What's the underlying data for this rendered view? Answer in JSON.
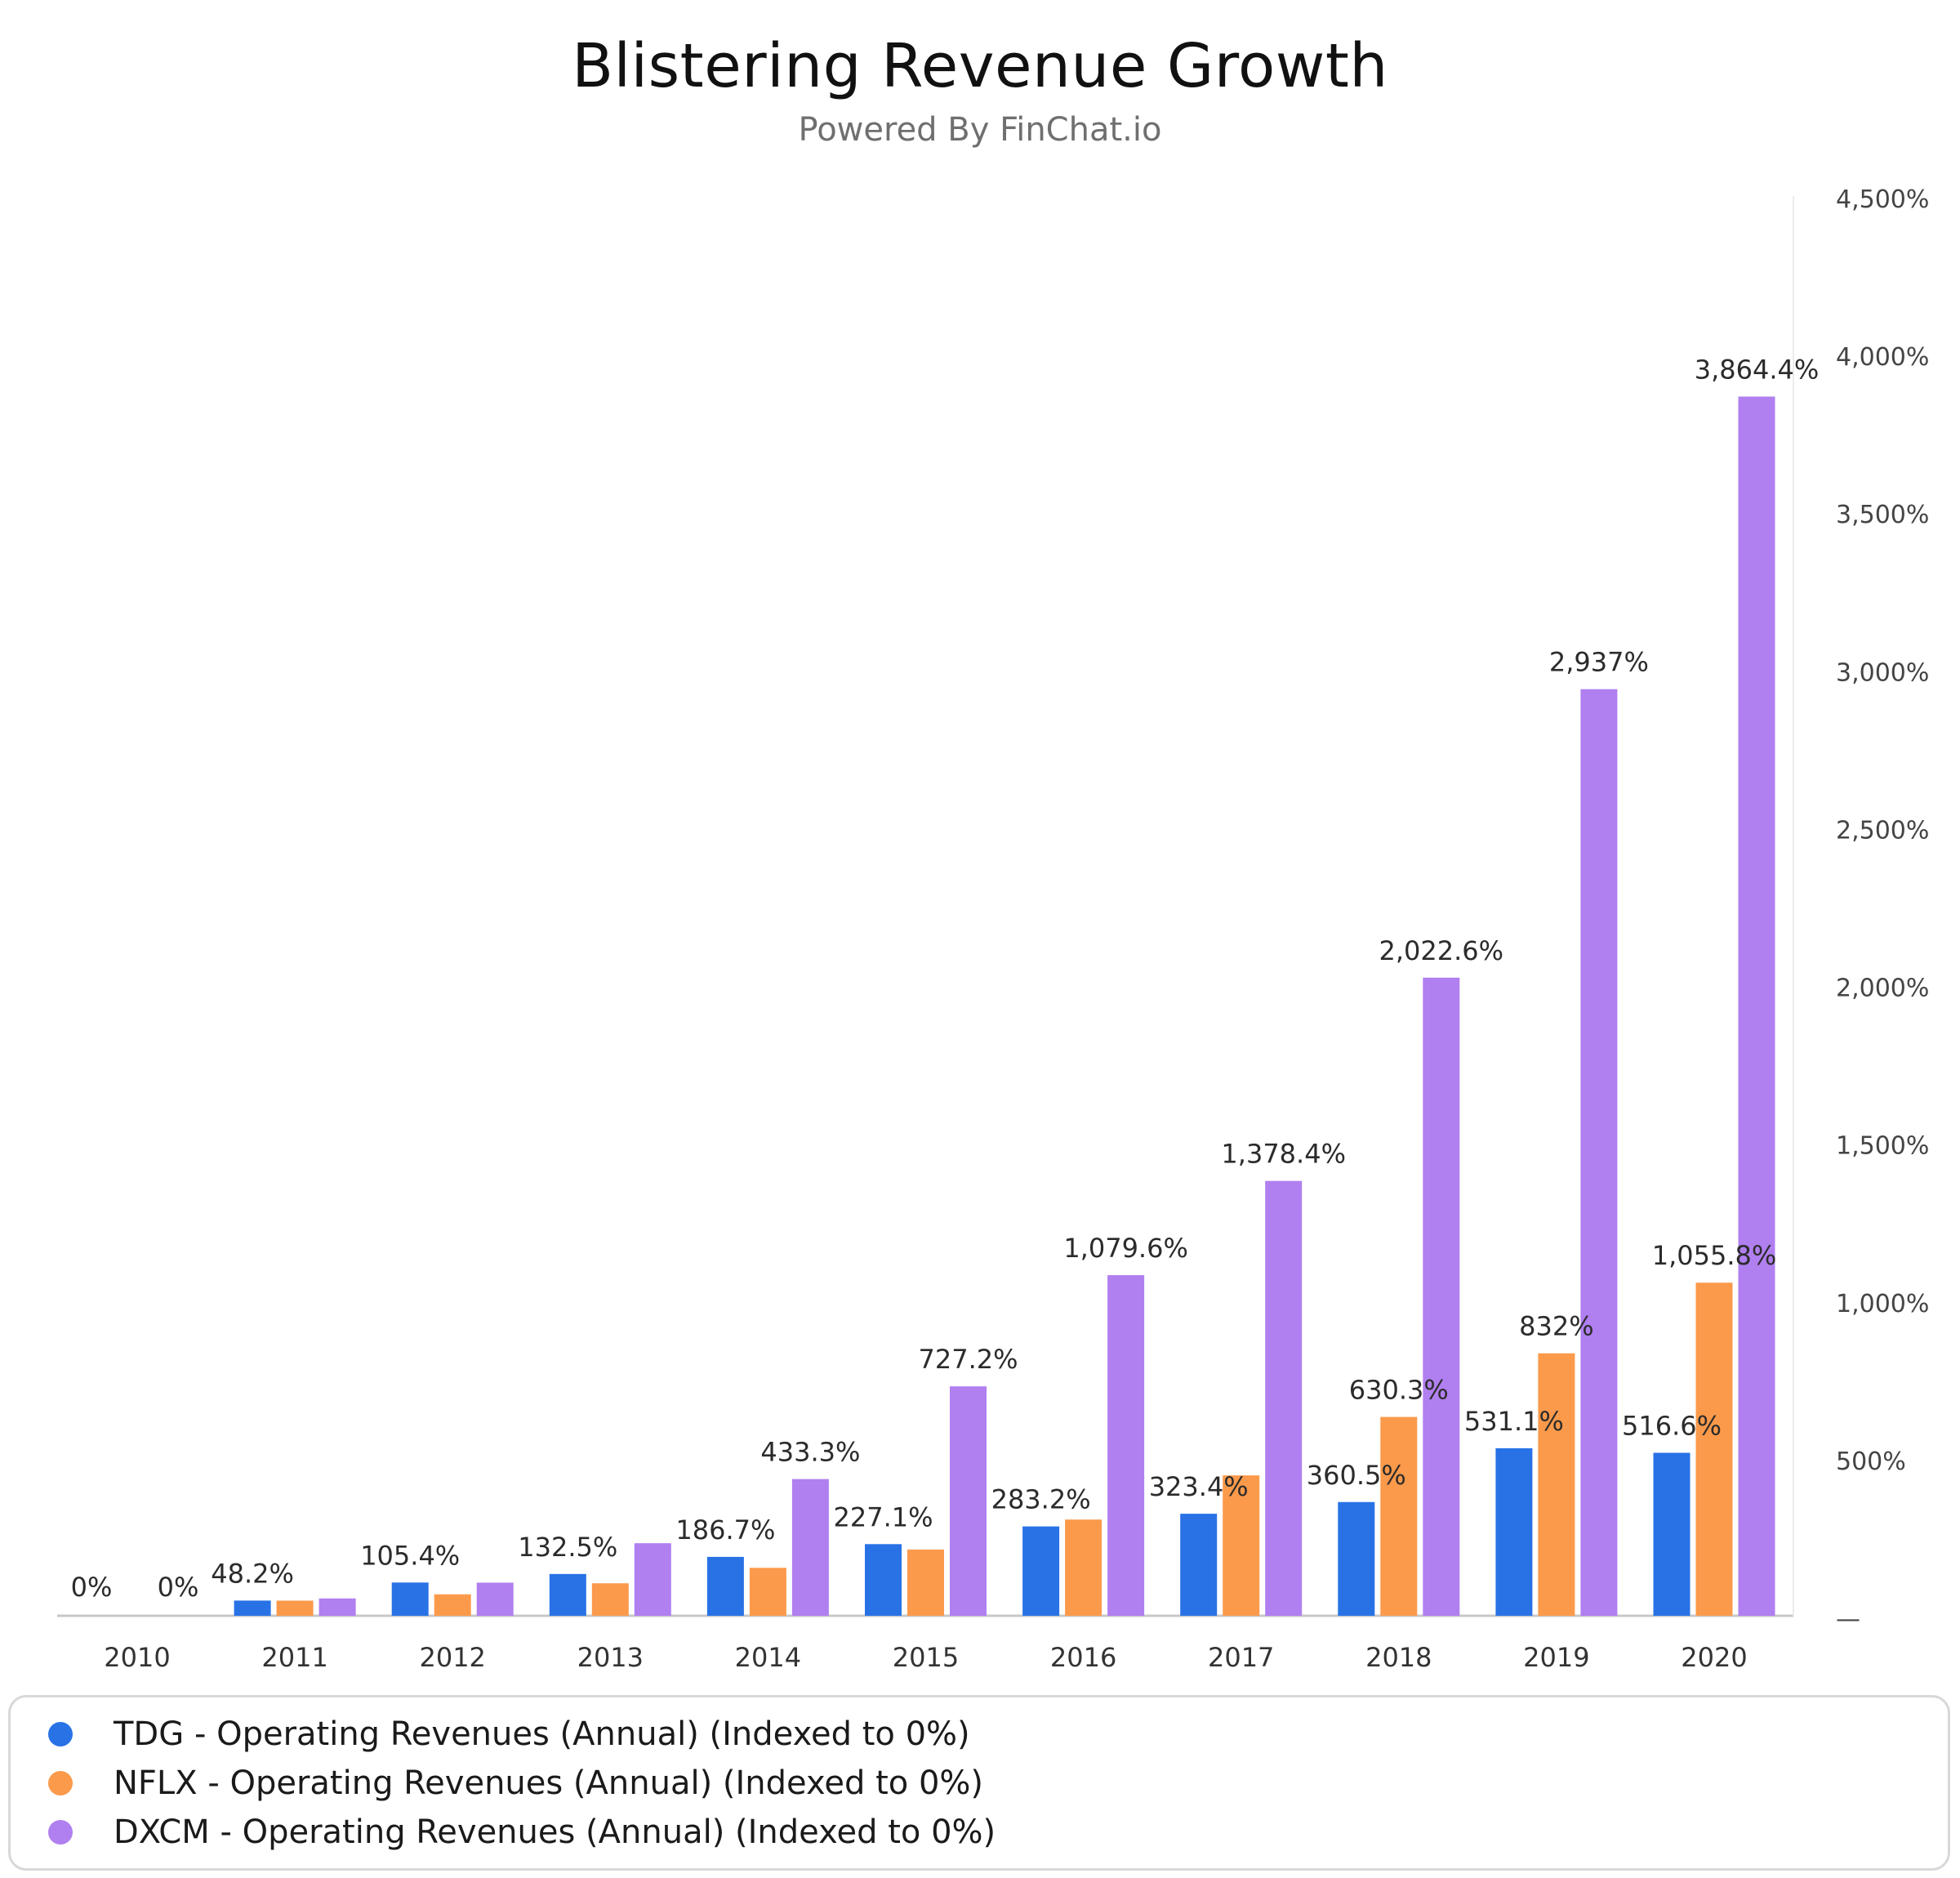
{
  "title": "Blistering Revenue Growth",
  "subtitle": "Powered By FinChat.io",
  "colors": {
    "TDG": "#2872e6",
    "NFLX": "#fb9a4b",
    "DXCM": "#b07ff0"
  },
  "chart_data": {
    "type": "bar",
    "title": "Blistering Revenue Growth",
    "subtitle": "Powered By FinChat.io",
    "categories": [
      "2010",
      "2011",
      "2012",
      "2013",
      "2014",
      "2015",
      "2016",
      "2017",
      "2018",
      "2019",
      "2020"
    ],
    "series": [
      {
        "name": "TDG - Operating Revenues (Annual) (Indexed to 0%)",
        "color": "#2872e6",
        "values": [
          0,
          48.2,
          105.4,
          132.5,
          186.7,
          227.1,
          283.2,
          323.4,
          360.5,
          531.1,
          516.6
        ]
      },
      {
        "name": "NFLX - Operating Revenues (Annual) (Indexed to 0%)",
        "color": "#fb9a4b",
        "values": [
          0,
          48,
          68,
          103,
          152,
          210,
          305,
          445,
          630.3,
          832,
          1055.8
        ]
      },
      {
        "name": "DXCM - Operating Revenues (Annual) (Indexed to 0%)",
        "color": "#b07ff0",
        "values": [
          0,
          55,
          105,
          230,
          433.3,
          727.2,
          1079.6,
          1378.4,
          2022.6,
          2937,
          3864.4
        ]
      }
    ],
    "data_labels": [
      {
        "category": "2010",
        "text": "0%"
      },
      {
        "category": "2010",
        "text": "0%"
      },
      {
        "category": "2011",
        "text": "48.2%"
      },
      {
        "category": "2012",
        "text": "105.4%"
      },
      {
        "category": "2013",
        "text": "132.5%"
      },
      {
        "category": "2014",
        "text": "186.7%"
      },
      {
        "category": "2014",
        "text": "433.3%"
      },
      {
        "category": "2015",
        "text": "227.1%"
      },
      {
        "category": "2015",
        "text": "727.2%"
      },
      {
        "category": "2016",
        "text": "283.2%"
      },
      {
        "category": "2016",
        "text": "1,079.6%"
      },
      {
        "category": "2017",
        "text": "323.4%"
      },
      {
        "category": "2017",
        "text": "1,378.4%"
      },
      {
        "category": "2018",
        "text": "360.5%"
      },
      {
        "category": "2018",
        "text": "630.3%"
      },
      {
        "category": "2018",
        "text": "2,022.6%"
      },
      {
        "category": "2019",
        "text": "531.1%"
      },
      {
        "category": "2019",
        "text": "832%"
      },
      {
        "category": "2019",
        "text": "2,937%"
      },
      {
        "category": "2020",
        "text": "516.6%"
      },
      {
        "category": "2020",
        "text": "1,055.8%"
      },
      {
        "category": "2020",
        "text": "3,864.4%"
      }
    ],
    "y_ticks": [
      {
        "value": 0,
        "label": "—"
      },
      {
        "value": 500,
        "label": "500%"
      },
      {
        "value": 1000,
        "label": "1,000%"
      },
      {
        "value": 1500,
        "label": "1,500%"
      },
      {
        "value": 2000,
        "label": "2,000%"
      },
      {
        "value": 2500,
        "label": "2,500%"
      },
      {
        "value": 3000,
        "label": "3,000%"
      },
      {
        "value": 3500,
        "label": "3,500%"
      },
      {
        "value": 4000,
        "label": "4,000%"
      },
      {
        "value": 4500,
        "label": "4,500%"
      }
    ],
    "ylim": [
      0,
      4500
    ],
    "y_axis_position": "right",
    "xlabel": "",
    "ylabel": "",
    "grid": false,
    "legend_position": "bottom"
  }
}
